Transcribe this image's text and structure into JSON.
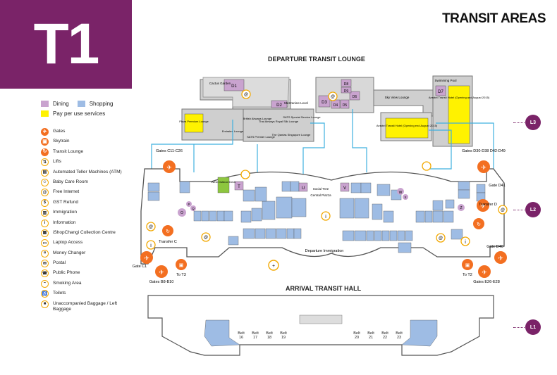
{
  "terminal_label": "T1",
  "page_title": "TRANSIT AREAS",
  "sections": {
    "departure": "DEPARTURE TRANSIT LOUNGE",
    "arrival": "ARRIVAL TRANSIT HALL"
  },
  "colors": {
    "brand_purple": "#7a2368",
    "dining": "#c9a3cf",
    "shopping": "#9ebce4",
    "pay_per_use": "#fff200",
    "orange": "#f36f21",
    "walkway": "#3fb0df"
  },
  "legend_top": {
    "dining": "Dining",
    "shopping": "Shopping",
    "pay_per_use": "Pay per use services"
  },
  "legend": [
    {
      "label": "Gates",
      "icon": "airplane-icon"
    },
    {
      "label": "Skytrain",
      "icon": "skytrain-icon"
    },
    {
      "label": "Transit Lounge",
      "icon": "transit-lounge-icon"
    },
    {
      "label": "Lifts",
      "icon": "lift-icon"
    },
    {
      "label": "Automated Teller Machines (ATM)",
      "icon": "atm-icon"
    },
    {
      "label": "Baby Care Room",
      "icon": "baby-care-icon"
    },
    {
      "label": "Free Internet",
      "icon": "internet-icon"
    },
    {
      "label": "GST Refund",
      "icon": "gst-refund-icon"
    },
    {
      "label": "Immigration",
      "icon": "immigration-icon"
    },
    {
      "label": "Information",
      "icon": "information-icon"
    },
    {
      "label": "iShopChangi Collection Centre",
      "icon": "ishopchangi-icon"
    },
    {
      "label": "Laptop Access",
      "icon": "laptop-icon"
    },
    {
      "label": "Money Changer",
      "icon": "money-changer-icon"
    },
    {
      "label": "Postal",
      "icon": "postal-icon"
    },
    {
      "label": "Public Phone",
      "icon": "phone-icon"
    },
    {
      "label": "Smoking Area",
      "icon": "smoking-icon"
    },
    {
      "label": "Toilets",
      "icon": "toilet-icon"
    },
    {
      "label": "Unaccompanied Baggage / Left Baggage",
      "icon": "baggage-icon"
    }
  ],
  "levels": [
    "L3",
    "L2",
    "L1"
  ],
  "gates": {
    "c11_c26": "Gates C11-C26",
    "c1": "Gate C1",
    "b8_b10": "Gates B8-B10",
    "d30_d49": "Gates D30-D38 D42-D49",
    "d41": "Gate D41",
    "d40": "Gate D40",
    "e26_e28": "Gates E26-E28"
  },
  "transfers": {
    "c": "Transfer C",
    "d": "Transfer D",
    "to_t3": "To T3",
    "to_t2": "To T2"
  },
  "places": {
    "cactus_garden": "Cactus Garden",
    "mezzanine": "Mezzanine Level",
    "plaza_premium": "Plaza Premium Lounge",
    "emirates": "Emirates Lounge",
    "ba_lounge": "British Airways Lounge",
    "sats_premier": "SATS Premier Lounge",
    "thai_lounge": "Thai Airways Royal Silk Lounge",
    "sats_special": "SATS Special Service Lounge",
    "qantas": "The Qantas Singapore Lounge",
    "sky_view": "Sky View Lounge",
    "swimming_pool": "Swimming Pool",
    "aerotel_l3": "Aerotel Transit Hotel (Opening and August 2015)",
    "aerotel_right": "Aerotel Transit Hotel (Opening end August 2015)",
    "west_deck": "West Outdoor Deck",
    "social_tree": "Social Tree",
    "central_piazza": "Central Piazza",
    "departure_immigration": "Departure Immigration"
  },
  "dining_codes": [
    "D1",
    "D2",
    "D3",
    "D4",
    "D5",
    "D6",
    "D7",
    "D8",
    "D9",
    "T",
    "U",
    "V",
    "W",
    "X",
    "O",
    "P",
    "Q",
    "Z"
  ],
  "belts_left": [
    "Belt 16",
    "Belt 17",
    "Belt 18",
    "Belt 19"
  ],
  "belts_right": [
    "Belt 20",
    "Belt 21",
    "Belt 22",
    "Belt 23"
  ]
}
